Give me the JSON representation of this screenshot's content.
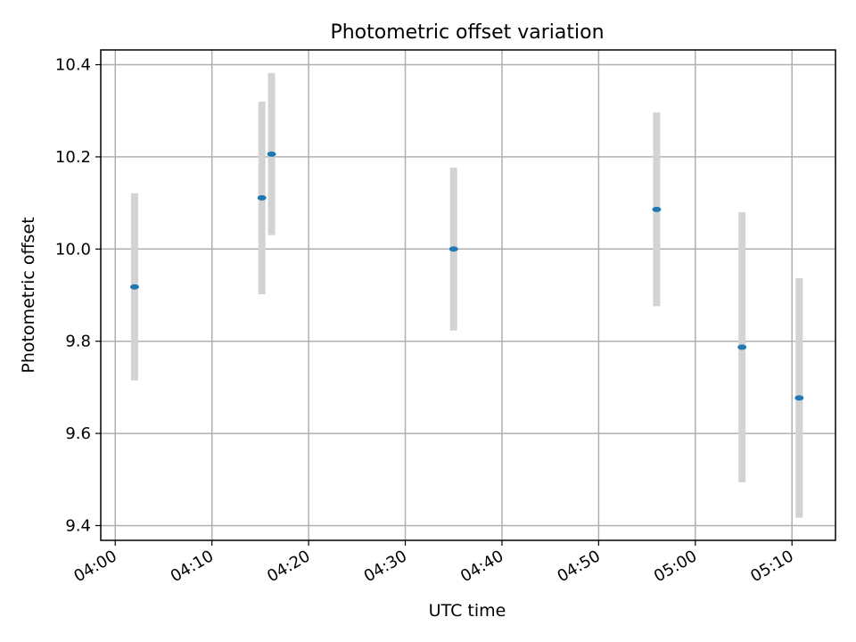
{
  "chart_data": {
    "type": "scatter",
    "title": "Photometric offset variation",
    "xlabel": "UTC time",
    "ylabel": "Photometric offset",
    "xlim": [
      "03:58:30",
      "05:14:30"
    ],
    "ylim": [
      9.368,
      10.432
    ],
    "x_ticks": [
      "04:00",
      "04:10",
      "04:20",
      "04:30",
      "04:40",
      "04:50",
      "05:00",
      "05:10"
    ],
    "y_ticks": [
      "9.4",
      "9.6",
      "9.8",
      "10.0",
      "10.2",
      "10.4"
    ],
    "grid": true,
    "points": [
      {
        "time": "04:02:00",
        "value": 9.918,
        "err": 0.203
      },
      {
        "time": "04:15:10",
        "value": 10.111,
        "err": 0.209
      },
      {
        "time": "04:16:10",
        "value": 10.206,
        "err": 0.176
      },
      {
        "time": "04:35:00",
        "value": 10.0,
        "err": 0.177
      },
      {
        "time": "04:56:00",
        "value": 10.086,
        "err": 0.21
      },
      {
        "time": "05:04:50",
        "value": 9.787,
        "err": 0.293
      },
      {
        "time": "05:10:45",
        "value": 9.677,
        "err": 0.26
      }
    ],
    "colors": {
      "marker": "#1f77b4",
      "errorbar": "#d3d3d3",
      "grid": "#b0b0b0"
    }
  }
}
